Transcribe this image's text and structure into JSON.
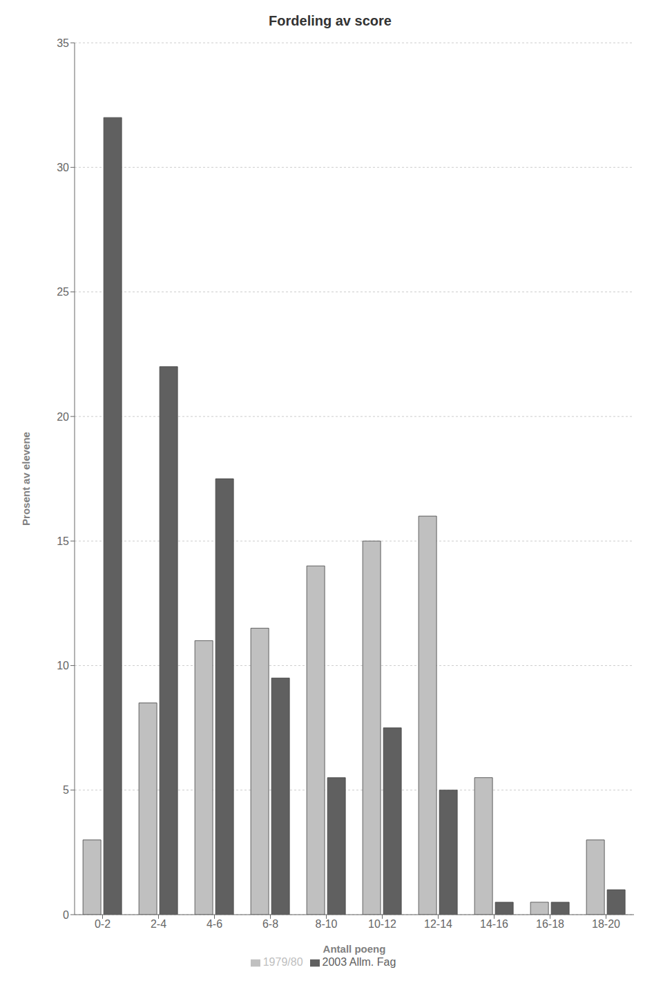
{
  "chart_data": {
    "type": "bar",
    "title": "Fordeling av score",
    "xlabel": "Antall poeng",
    "ylabel": "Prosent av elevene",
    "categories": [
      "0-2",
      "2-4",
      "4-6",
      "6-8",
      "8-10",
      "10-12",
      "12-14",
      "14-16",
      "16-18",
      "18-20"
    ],
    "series": [
      {
        "name": "1979/80",
        "color": "#c0c0c0",
        "values": [
          3,
          8.5,
          11,
          11.5,
          14,
          15,
          16,
          5.5,
          0.5,
          3
        ]
      },
      {
        "name": "2003 Allm. Fag",
        "color": "#606060",
        "values": [
          32,
          22,
          17.5,
          9.5,
          5.5,
          7.5,
          5,
          0.5,
          0.5,
          1
        ]
      }
    ],
    "ylim": [
      0,
      35
    ],
    "yticks": [
      0,
      5,
      10,
      15,
      20,
      25,
      30,
      35
    ],
    "grid": true,
    "legend": "bottom"
  }
}
